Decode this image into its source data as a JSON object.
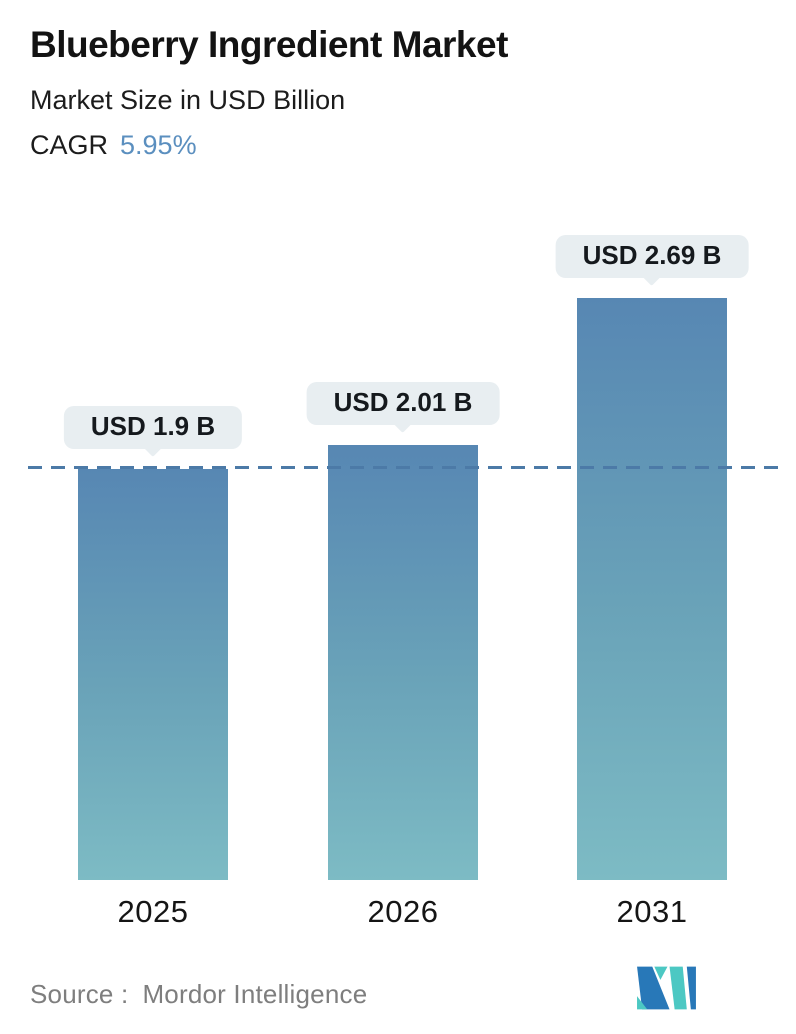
{
  "header": {
    "title": "Blueberry Ingredient Market",
    "subtitle": "Market Size in USD Billion",
    "cagr_label": "CAGR",
    "cagr_value": "5.95%"
  },
  "chart_data": {
    "type": "bar",
    "title": "Blueberry Ingredient Market",
    "subtitle": "Market Size in USD Billion",
    "unit": "USD Billion",
    "cagr_percent": 5.95,
    "categories": [
      "2025",
      "2026",
      "2031"
    ],
    "values": [
      1.9,
      2.01,
      2.69
    ],
    "labels": [
      "USD 1.9 B",
      "USD 2.01 B",
      "USD 2.69 B"
    ],
    "reference_line_value": 1.9,
    "ylim": [
      0,
      3
    ],
    "grid": false,
    "legend": false,
    "colors": {
      "bar_top": "#5787b3",
      "bar_bottom": "#7dbbc4",
      "reference_line": "#4c7aa7",
      "bubble_bg": "#e8eef1",
      "cagr_accent": "#5b8fbf",
      "logo_blue": "#2878b8",
      "logo_teal": "#4cc8c3"
    }
  },
  "footer": {
    "source_label": "Source :",
    "source_value": "Mordor Intelligence",
    "logo_name": "mordor-intelligence-logo"
  }
}
